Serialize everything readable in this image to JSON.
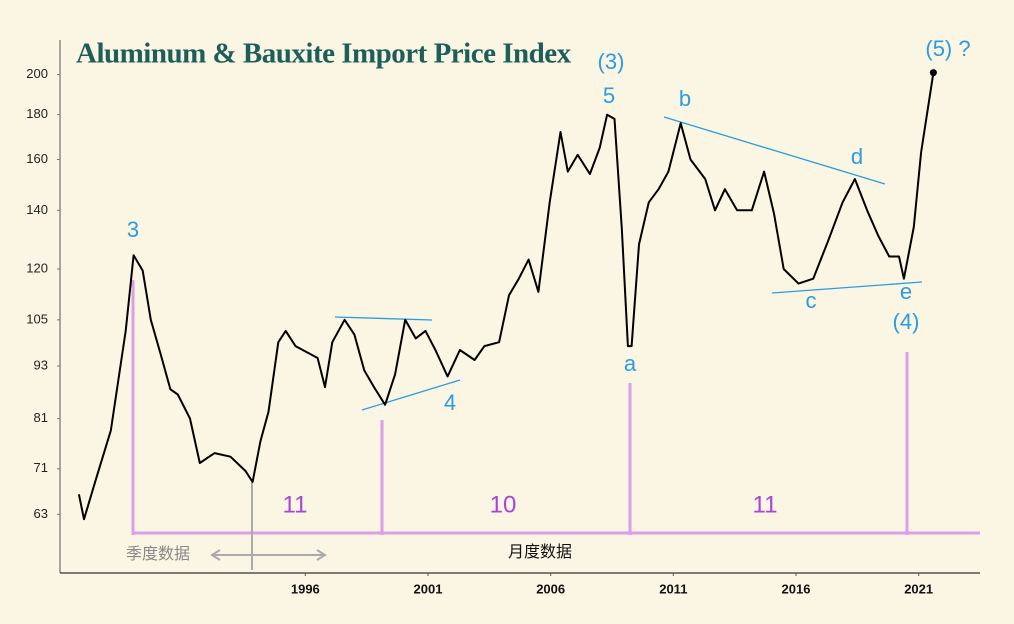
{
  "chart_data": {
    "type": "line",
    "title": "Aluminum & Bauxite Import Price Index",
    "x": [
      1986.77,
      1986.98,
      1987.46,
      1988.07,
      1988.68,
      1989.0,
      1989.37,
      1989.7,
      1990.1,
      1990.5,
      1990.8,
      1991.3,
      1991.7,
      1992.3,
      1992.95,
      1993.56,
      1993.85,
      1994.17,
      1994.5,
      1994.9,
      1995.2,
      1995.6,
      1996.2,
      1996.5,
      1996.8,
      1997.1,
      1997.6,
      1998.0,
      1998.4,
      1998.8,
      1999.25,
      1999.66,
      2000.07,
      2000.5,
      2000.9,
      2001.3,
      2001.8,
      2002.3,
      2002.9,
      2003.3,
      2003.9,
      2004.3,
      2004.7,
      2005.1,
      2005.5,
      2005.96,
      2006.4,
      2006.7,
      2007.1,
      2007.6,
      2008.0,
      2008.3,
      2008.6,
      2008.9,
      2009.15,
      2009.3,
      2009.6,
      2010.0,
      2010.4,
      2010.8,
      2011.3,
      2011.7,
      2012.3,
      2012.7,
      2013.1,
      2013.6,
      2014.2,
      2014.7,
      2015.1,
      2015.5,
      2016.1,
      2016.7,
      2017.3,
      2017.9,
      2018.4,
      2018.9,
      2019.35,
      2019.8,
      2020.2,
      2020.4,
      2020.8,
      2021.1,
      2021.6
    ],
    "values": [
      66.4,
      62.2,
      69,
      78.5,
      102,
      124.4,
      119.5,
      105,
      96,
      87.5,
      86.3,
      81,
      72.1,
      74,
      73.3,
      70.6,
      68.6,
      76.3,
      82.5,
      99,
      102,
      98,
      96,
      95,
      88,
      99,
      105,
      101,
      92,
      88,
      84,
      91,
      105,
      100,
      102,
      97,
      90.5,
      97,
      94.5,
      98,
      99,
      112,
      117,
      123,
      113,
      143,
      172,
      155,
      162,
      154,
      165,
      180,
      178,
      133.5,
      98,
      98,
      128,
      143,
      148,
      155,
      176,
      160,
      152,
      140,
      148,
      140,
      140,
      155,
      139,
      120,
      115.5,
      117,
      129,
      143,
      152,
      140,
      131,
      124,
      124,
      117,
      134,
      163,
      201
    ],
    "color": "#000000",
    "log_y": true,
    "grid": false,
    "xlim": [
      1986,
      2023.5
    ],
    "ylim": [
      54,
      219
    ],
    "xticks": [
      1996,
      2001,
      2006,
      2011,
      2016,
      2021
    ],
    "yticks": [
      63,
      71,
      81,
      93,
      105,
      120,
      140,
      160,
      180,
      200
    ],
    "annotations": [
      "3",
      "(3)",
      "5",
      "a",
      "b",
      "c",
      "d",
      "e",
      "(4)",
      "4",
      "(5) ?",
      "11",
      "10",
      "11",
      "季度数据",
      "月度数据"
    ]
  }
}
